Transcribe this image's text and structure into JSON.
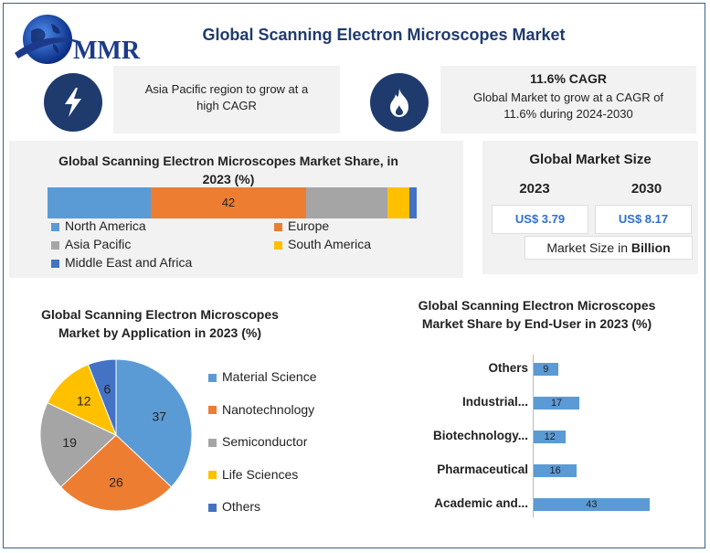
{
  "header": {
    "logo_text": "MMR",
    "title": "Global Scanning Electron Microscopes Market"
  },
  "highlights": {
    "left_text": "Asia Pacific region to grow at a high CAGR",
    "right_title": "11.6% CAGR",
    "right_text": "Global Market to grow at a CAGR of 11.6% during 2024-2030"
  },
  "market_size": {
    "title": "Global Market Size",
    "year1": "2023",
    "year2": "2030",
    "value1": "US$ 3.79",
    "value2": "US$ 8.17",
    "note_prefix": "Market Size in ",
    "note_bold": "Billion"
  },
  "chart_data": [
    {
      "type": "bar",
      "subtype": "stacked-100",
      "title": "Global Scanning Electron Microscopes Market Share, in 2023 (%)",
      "series": [
        {
          "name": "North America",
          "value": 28,
          "color": "#5b9bd5"
        },
        {
          "name": "Europe",
          "value": 42,
          "label": "42",
          "color": "#ed7d31"
        },
        {
          "name": "Asia Pacific",
          "value": 22,
          "color": "#a5a5a5"
        },
        {
          "name": "South America",
          "value": 6,
          "color": "#ffc000"
        },
        {
          "name": "Middle East and Africa",
          "value": 2,
          "color": "#4472c4"
        }
      ]
    },
    {
      "type": "pie",
      "title": "Global Scanning Electron Microscopes Market by Application in 2023 (%)",
      "categories": [
        "Material Science",
        "Nanotechnology",
        "Semiconductor",
        "Life Sciences",
        "Others"
      ],
      "values": [
        37,
        26,
        19,
        12,
        6
      ],
      "colors": [
        "#5b9bd5",
        "#ed7d31",
        "#a5a5a5",
        "#ffc000",
        "#4472c4"
      ]
    },
    {
      "type": "bar",
      "orientation": "horizontal",
      "title": "Global Scanning Electron Microscopes Market Share by End-User in 2023 (%)",
      "categories": [
        "Others",
        "Industrial...",
        "Biotechnology...",
        "Pharmaceutical",
        "Academic and..."
      ],
      "values": [
        9,
        17,
        12,
        16,
        43
      ],
      "color": "#5b9bd5"
    }
  ]
}
